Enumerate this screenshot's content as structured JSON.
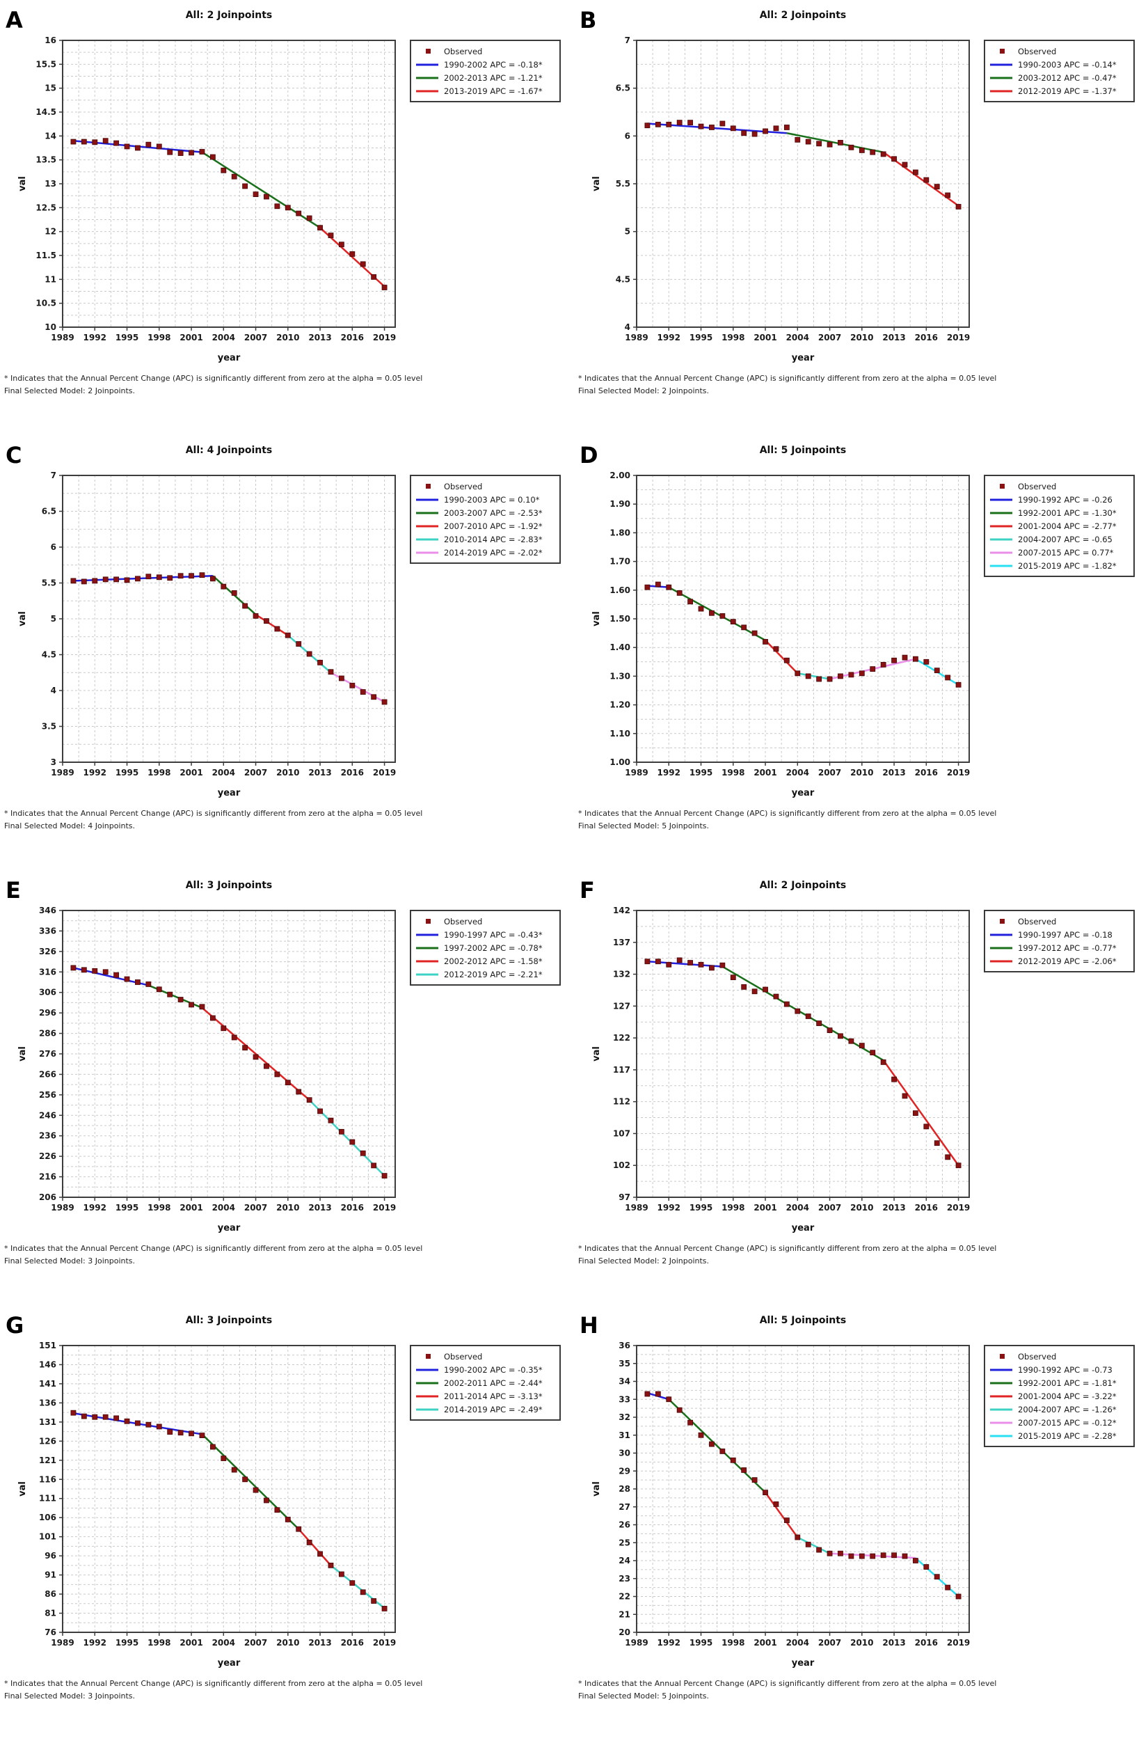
{
  "figure": {
    "ylabel": "val",
    "xlabel": "year",
    "observed_label": "Observed",
    "footnote_line1": "* Indicates that the Annual Percent Change (APC) is significantly different from zero at the alpha = 0.05 level",
    "xticks": [
      1989,
      1992,
      1995,
      1998,
      2001,
      2004,
      2007,
      2010,
      2013,
      2016,
      2019
    ],
    "xlim": [
      1989,
      2020
    ],
    "years": [
      1990,
      1991,
      1992,
      1993,
      1994,
      1995,
      1996,
      1997,
      1998,
      1999,
      2000,
      2001,
      2002,
      2003,
      2004,
      2005,
      2006,
      2007,
      2008,
      2009,
      2010,
      2011,
      2012,
      2013,
      2014,
      2015,
      2016,
      2017,
      2018,
      2019
    ],
    "colors": {
      "observed": "#8a1212",
      "blue": "#2020dd",
      "green": "#1a701a",
      "red": "#e02424",
      "turquoise": "#3ed2c6",
      "violet": "#e98fe9",
      "cyan": "#29dff2",
      "frame": "#3d3d3d",
      "grid": "#c9c9c9",
      "text": "#1b1b1b"
    }
  },
  "chart_data": [
    {
      "type": "line",
      "letter": "A",
      "title": "All: 2 Joinpoints",
      "footnote_line2": "Final Selected Model: 2 Joinpoints.",
      "ylim": [
        10,
        16
      ],
      "ystep": 0.5,
      "ydecimals": 1,
      "values": [
        13.88,
        13.88,
        13.87,
        13.9,
        13.85,
        13.78,
        13.75,
        13.82,
        13.78,
        13.66,
        13.64,
        13.65,
        13.67,
        13.56,
        13.28,
        13.15,
        12.95,
        12.78,
        12.73,
        12.53,
        12.5,
        12.38,
        12.28,
        12.08,
        11.92,
        11.73,
        11.53,
        11.32,
        11.05,
        10.83
      ],
      "legend": [
        {
          "label": "1990-2002 APC = -0.18*",
          "color": "blue"
        },
        {
          "label": "2002-2013 APC = -1.21*",
          "color": "green"
        },
        {
          "label": "2013-2019 APC = -1.67*",
          "color": "red"
        }
      ],
      "segments": [
        {
          "color": "blue",
          "x0": 1990,
          "y0": 13.9,
          "x1": 2002,
          "y1": 13.66
        },
        {
          "color": "green",
          "x0": 2002,
          "y0": 13.66,
          "x1": 2013,
          "y1": 12.08
        },
        {
          "color": "red",
          "x0": 2013,
          "y0": 12.08,
          "x1": 2019,
          "y1": 10.85
        }
      ]
    },
    {
      "type": "line",
      "letter": "B",
      "title": "All: 2 Joinpoints",
      "footnote_line2": "Final Selected Model: 2 Joinpoints.",
      "ylim": [
        4,
        7
      ],
      "ystep": 0.5,
      "ydecimals": 1,
      "values": [
        6.11,
        6.12,
        6.12,
        6.14,
        6.14,
        6.1,
        6.09,
        6.13,
        6.08,
        6.03,
        6.02,
        6.05,
        6.08,
        6.09,
        5.96,
        5.94,
        5.92,
        5.91,
        5.93,
        5.88,
        5.85,
        5.83,
        5.81,
        5.76,
        5.7,
        5.62,
        5.54,
        5.47,
        5.38,
        5.26
      ],
      "legend": [
        {
          "label": "1990-2003 APC = -0.14*",
          "color": "blue"
        },
        {
          "label": "2003-2012 APC = -0.47*",
          "color": "green"
        },
        {
          "label": "2012-2019 APC = -1.37*",
          "color": "red"
        }
      ],
      "segments": [
        {
          "color": "blue",
          "x0": 1990,
          "y0": 6.13,
          "x1": 2003,
          "y1": 6.03
        },
        {
          "color": "green",
          "x0": 2003,
          "y0": 6.03,
          "x1": 2012,
          "y1": 5.83
        },
        {
          "color": "red",
          "x0": 2012,
          "y0": 5.83,
          "x1": 2019,
          "y1": 5.27
        }
      ]
    },
    {
      "type": "line",
      "letter": "C",
      "title": "All: 4 Joinpoints",
      "footnote_line2": "Final Selected Model: 4 Joinpoints.",
      "ylim": [
        3,
        7
      ],
      "ystep": 0.5,
      "ydecimals": 1,
      "values": [
        5.53,
        5.52,
        5.53,
        5.55,
        5.55,
        5.54,
        5.56,
        5.59,
        5.58,
        5.57,
        5.6,
        5.6,
        5.61,
        5.56,
        5.45,
        5.36,
        5.18,
        5.04,
        4.97,
        4.86,
        4.77,
        4.65,
        4.51,
        4.39,
        4.26,
        4.17,
        4.07,
        3.98,
        3.91,
        3.84
      ],
      "legend": [
        {
          "label": "1990-2003 APC = 0.10*",
          "color": "blue"
        },
        {
          "label": "2003-2007 APC = -2.53*",
          "color": "green"
        },
        {
          "label": "2007-2010 APC = -1.92*",
          "color": "red"
        },
        {
          "label": "2010-2014 APC = -2.83*",
          "color": "turquoise"
        },
        {
          "label": "2014-2019 APC = -2.02*",
          "color": "violet"
        }
      ],
      "segments": [
        {
          "color": "blue",
          "x0": 1990,
          "y0": 5.53,
          "x1": 2003,
          "y1": 5.6
        },
        {
          "color": "green",
          "x0": 2003,
          "y0": 5.6,
          "x1": 2007,
          "y1": 5.06
        },
        {
          "color": "red",
          "x0": 2007,
          "y0": 5.06,
          "x1": 2010,
          "y1": 4.77
        },
        {
          "color": "turquoise",
          "x0": 2010,
          "y0": 4.77,
          "x1": 2014,
          "y1": 4.25
        },
        {
          "color": "violet",
          "x0": 2014,
          "y0": 4.25,
          "x1": 2019,
          "y1": 3.84
        }
      ]
    },
    {
      "type": "line",
      "letter": "D",
      "title": "All: 5 Joinpoints",
      "footnote_line2": "Final Selected Model: 5 Joinpoints.",
      "ylim": [
        1.0,
        2.0
      ],
      "ystep": 0.1,
      "ydecimals": 2,
      "values": [
        1.61,
        1.62,
        1.61,
        1.59,
        1.56,
        1.535,
        1.52,
        1.51,
        1.49,
        1.47,
        1.45,
        1.42,
        1.395,
        1.355,
        1.31,
        1.3,
        1.29,
        1.29,
        1.3,
        1.305,
        1.31,
        1.325,
        1.34,
        1.355,
        1.365,
        1.36,
        1.35,
        1.32,
        1.295,
        1.27
      ],
      "legend": [
        {
          "label": "1990-1992 APC = -0.26",
          "color": "blue"
        },
        {
          "label": "1992-2001 APC = -1.30*",
          "color": "green"
        },
        {
          "label": "2001-2004 APC = -2.77*",
          "color": "red"
        },
        {
          "label": "2004-2007 APC = -0.65",
          "color": "turquoise"
        },
        {
          "label": "2007-2015 APC = 0.77*",
          "color": "violet"
        },
        {
          "label": "2015-2019 APC = -1.82*",
          "color": "cyan"
        }
      ],
      "segments": [
        {
          "color": "blue",
          "x0": 1990,
          "y0": 1.615,
          "x1": 1992,
          "y1": 1.61
        },
        {
          "color": "green",
          "x0": 1992,
          "y0": 1.61,
          "x1": 2001,
          "y1": 1.425
        },
        {
          "color": "red",
          "x0": 2001,
          "y0": 1.425,
          "x1": 2004,
          "y1": 1.31
        },
        {
          "color": "turquoise",
          "x0": 2004,
          "y0": 1.31,
          "x1": 2007,
          "y1": 1.29
        },
        {
          "color": "violet",
          "x0": 2007,
          "y0": 1.29,
          "x1": 2015,
          "y1": 1.36
        },
        {
          "color": "cyan",
          "x0": 2015,
          "y0": 1.36,
          "x1": 2019,
          "y1": 1.27
        }
      ]
    },
    {
      "type": "line",
      "letter": "E",
      "title": "All: 3 Joinpoints",
      "footnote_line2": "Final Selected Model: 3 Joinpoints.",
      "ylim": [
        206,
        346
      ],
      "ystep": 10,
      "ydecimals": 0,
      "values": [
        318,
        317,
        316.5,
        316,
        314.5,
        312.5,
        311,
        310,
        307.5,
        305,
        302.5,
        300,
        299,
        293.5,
        288.5,
        284,
        279,
        274.5,
        270,
        266,
        262,
        257.5,
        253.5,
        248,
        243.5,
        238,
        233,
        227.5,
        221.5,
        216.5
      ],
      "legend": [
        {
          "label": "1990-1997 APC = -0.43*",
          "color": "blue"
        },
        {
          "label": "1997-2002 APC = -0.78*",
          "color": "green"
        },
        {
          "label": "2002-2012 APC = -1.58*",
          "color": "red"
        },
        {
          "label": "2012-2019 APC = -2.21*",
          "color": "turquoise"
        }
      ],
      "segments": [
        {
          "color": "blue",
          "x0": 1990,
          "y0": 318,
          "x1": 1997,
          "y1": 309.5
        },
        {
          "color": "green",
          "x0": 1997,
          "y0": 309.5,
          "x1": 2002,
          "y1": 298.5
        },
        {
          "color": "red",
          "x0": 2002,
          "y0": 298.5,
          "x1": 2012,
          "y1": 253.5
        },
        {
          "color": "turquoise",
          "x0": 2012,
          "y0": 253.5,
          "x1": 2019,
          "y1": 216.5
        }
      ]
    },
    {
      "type": "line",
      "letter": "F",
      "title": "All: 2 Joinpoints",
      "footnote_line2": "Final Selected Model: 2 Joinpoints.",
      "ylim": [
        97,
        142
      ],
      "ystep": 5,
      "ydecimals": 0,
      "values": [
        134,
        134,
        133.5,
        134.2,
        133.8,
        133.5,
        133,
        133.4,
        131.5,
        130,
        129.3,
        129.6,
        128.5,
        127.3,
        126.2,
        125.4,
        124.3,
        123.2,
        122.3,
        121.5,
        120.8,
        119.7,
        118.2,
        115.5,
        112.9,
        110.2,
        108.1,
        105.5,
        103.3,
        102
      ],
      "legend": [
        {
          "label": "1990-1997 APC = -0.18",
          "color": "blue"
        },
        {
          "label": "1997-2012 APC = -0.77*",
          "color": "green"
        },
        {
          "label": "2012-2019 APC = -2.06*",
          "color": "red"
        }
      ],
      "segments": [
        {
          "color": "blue",
          "x0": 1990,
          "y0": 134,
          "x1": 1997,
          "y1": 133.2
        },
        {
          "color": "green",
          "x0": 1997,
          "y0": 133.2,
          "x1": 2012,
          "y1": 118.5
        },
        {
          "color": "red",
          "x0": 2012,
          "y0": 118.5,
          "x1": 2019,
          "y1": 102
        }
      ]
    },
    {
      "type": "line",
      "letter": "G",
      "title": "All: 3 Joinpoints",
      "footnote_line2": "Final Selected Model: 3 Joinpoints.",
      "ylim": [
        76,
        151
      ],
      "ystep": 5,
      "ydecimals": 0,
      "values": [
        133.4,
        132.5,
        132.3,
        132.3,
        132,
        131.2,
        130.7,
        130.3,
        129.8,
        128.4,
        128.2,
        128,
        127.5,
        124.5,
        121.5,
        118.5,
        116,
        113.2,
        110.5,
        108,
        105.5,
        103,
        99.5,
        96.5,
        93.5,
        91.2,
        88.9,
        86.5,
        84.2,
        82.2
      ],
      "legend": [
        {
          "label": "1990-2002 APC = -0.35*",
          "color": "blue"
        },
        {
          "label": "2002-2011 APC = -2.44*",
          "color": "green"
        },
        {
          "label": "2011-2014 APC = -3.13*",
          "color": "red"
        },
        {
          "label": "2014-2019 APC = -2.49*",
          "color": "turquoise"
        }
      ],
      "segments": [
        {
          "color": "blue",
          "x0": 1990,
          "y0": 133.3,
          "x1": 2002,
          "y1": 127.8
        },
        {
          "color": "green",
          "x0": 2002,
          "y0": 127.8,
          "x1": 2011,
          "y1": 103
        },
        {
          "color": "red",
          "x0": 2011,
          "y0": 103,
          "x1": 2014,
          "y1": 93.5
        },
        {
          "color": "turquoise",
          "x0": 2014,
          "y0": 93.5,
          "x1": 2019,
          "y1": 82.3
        }
      ]
    },
    {
      "type": "line",
      "letter": "H",
      "title": "All: 5 Joinpoints",
      "footnote_line2": "Final Selected Model: 5 Joinpoints.",
      "ylim": [
        20,
        36
      ],
      "ystep": 1,
      "ydecimals": 0,
      "values": [
        33.3,
        33.3,
        33.0,
        32.4,
        31.7,
        31.0,
        30.5,
        30.1,
        29.6,
        29.05,
        28.5,
        27.8,
        27.15,
        26.25,
        25.3,
        24.9,
        24.6,
        24.4,
        24.4,
        24.25,
        24.25,
        24.25,
        24.3,
        24.3,
        24.25,
        24.0,
        23.65,
        23.1,
        22.5,
        22.0
      ],
      "legend": [
        {
          "label": "1990-1992 APC = -0.73",
          "color": "blue"
        },
        {
          "label": "1992-2001 APC = -1.81*",
          "color": "green"
        },
        {
          "label": "2001-2004 APC = -3.22*",
          "color": "red"
        },
        {
          "label": "2004-2007 APC = -1.26*",
          "color": "turquoise"
        },
        {
          "label": "2007-2015 APC = -0.12*",
          "color": "violet"
        },
        {
          "label": "2015-2019 APC = -2.28*",
          "color": "cyan"
        }
      ],
      "segments": [
        {
          "color": "blue",
          "x0": 1990,
          "y0": 33.35,
          "x1": 1992,
          "y1": 33.0
        },
        {
          "color": "green",
          "x0": 1992,
          "y0": 33.0,
          "x1": 2001,
          "y1": 27.8
        },
        {
          "color": "red",
          "x0": 2001,
          "y0": 27.8,
          "x1": 2004,
          "y1": 25.3
        },
        {
          "color": "turquoise",
          "x0": 2004,
          "y0": 25.3,
          "x1": 2007,
          "y1": 24.4
        },
        {
          "color": "violet",
          "x0": 2007,
          "y0": 24.4,
          "x1": 2015,
          "y1": 24.15
        },
        {
          "color": "cyan",
          "x0": 2015,
          "y0": 24.15,
          "x1": 2019,
          "y1": 22.0
        }
      ]
    }
  ]
}
